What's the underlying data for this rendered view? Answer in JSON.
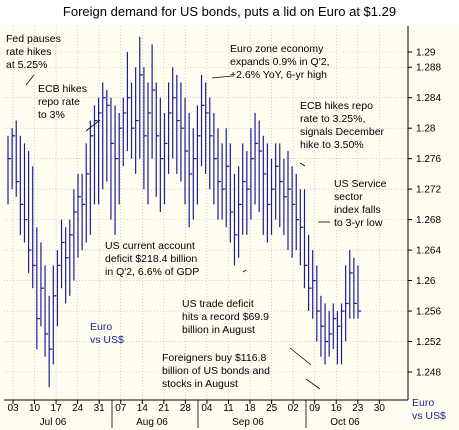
{
  "chart_data": {
    "type": "ohlc",
    "title": "Foreign demand for US bonds, puts a lid on Euro at $1.29",
    "series_name": "Euro vs US$",
    "right_label_lines": [
      "Euro",
      "vs US$"
    ],
    "inline_label_lines": [
      "Euro",
      "vs US$"
    ],
    "ylim": [
      1.244,
      1.294
    ],
    "y_ticks": [
      1.248,
      1.252,
      1.256,
      1.26,
      1.264,
      1.268,
      1.272,
      1.276,
      1.28,
      1.284,
      1.288,
      1.29
    ],
    "y_tick_labels": [
      "1.248",
      "1.252",
      "1.256",
      "1.26",
      "1.264",
      "1.268",
      "1.272",
      "1.276",
      "1.28",
      "1.284",
      "1.288",
      "1.29"
    ],
    "x_tick_labels": [
      "03",
      "10",
      "17",
      "24",
      "31",
      "07",
      "14",
      "21",
      "28",
      "04",
      "11",
      "18",
      "25",
      "02",
      "09",
      "16",
      "23",
      "30"
    ],
    "month_labels": [
      "Jul 06",
      "Aug 06",
      "Sep 06",
      "Oct 06"
    ],
    "bars": [
      {
        "high": 1.279,
        "low": 1.27,
        "close": 1.276
      },
      {
        "high": 1.28,
        "low": 1.272,
        "close": 1.279
      },
      {
        "high": 1.281,
        "low": 1.271,
        "close": 1.273
      },
      {
        "high": 1.279,
        "low": 1.266,
        "close": 1.27
      },
      {
        "high": 1.278,
        "low": 1.265,
        "close": 1.268
      },
      {
        "high": 1.277,
        "low": 1.261,
        "close": 1.264
      },
      {
        "high": 1.275,
        "low": 1.259,
        "close": 1.262
      },
      {
        "high": 1.267,
        "low": 1.251,
        "close": 1.255
      },
      {
        "high": 1.265,
        "low": 1.254,
        "close": 1.259
      },
      {
        "high": 1.262,
        "low": 1.25,
        "close": 1.253
      },
      {
        "high": 1.258,
        "low": 1.246,
        "close": 1.251
      },
      {
        "high": 1.262,
        "low": 1.249,
        "close": 1.258
      },
      {
        "high": 1.264,
        "low": 1.254,
        "close": 1.262
      },
      {
        "high": 1.268,
        "low": 1.259,
        "close": 1.265
      },
      {
        "high": 1.267,
        "low": 1.257,
        "close": 1.263
      },
      {
        "high": 1.268,
        "low": 1.258,
        "close": 1.266
      },
      {
        "high": 1.272,
        "low": 1.26,
        "close": 1.269
      },
      {
        "high": 1.274,
        "low": 1.263,
        "close": 1.271
      },
      {
        "high": 1.274,
        "low": 1.264,
        "close": 1.27
      },
      {
        "high": 1.278,
        "low": 1.265,
        "close": 1.274
      },
      {
        "high": 1.281,
        "low": 1.266,
        "close": 1.279
      },
      {
        "high": 1.283,
        "low": 1.27,
        "close": 1.281
      },
      {
        "high": 1.284,
        "low": 1.27,
        "close": 1.282
      },
      {
        "high": 1.286,
        "low": 1.272,
        "close": 1.284
      },
      {
        "high": 1.285,
        "low": 1.273,
        "close": 1.283
      },
      {
        "high": 1.284,
        "low": 1.268,
        "close": 1.278
      },
      {
        "high": 1.283,
        "low": 1.266,
        "close": 1.276
      },
      {
        "high": 1.282,
        "low": 1.27,
        "close": 1.28
      },
      {
        "high": 1.284,
        "low": 1.275,
        "close": 1.282
      },
      {
        "high": 1.29,
        "low": 1.277,
        "close": 1.284
      },
      {
        "high": 1.286,
        "low": 1.276,
        "close": 1.28
      },
      {
        "high": 1.288,
        "low": 1.274,
        "close": 1.281
      },
      {
        "high": 1.292,
        "low": 1.276,
        "close": 1.287
      },
      {
        "high": 1.288,
        "low": 1.272,
        "close": 1.279
      },
      {
        "high": 1.286,
        "low": 1.27,
        "close": 1.282
      },
      {
        "high": 1.291,
        "low": 1.276,
        "close": 1.285
      },
      {
        "high": 1.286,
        "low": 1.271,
        "close": 1.279
      },
      {
        "high": 1.284,
        "low": 1.269,
        "close": 1.276
      },
      {
        "high": 1.282,
        "low": 1.27,
        "close": 1.278
      },
      {
        "high": 1.286,
        "low": 1.274,
        "close": 1.282
      },
      {
        "high": 1.288,
        "low": 1.276,
        "close": 1.284
      },
      {
        "high": 1.287,
        "low": 1.274,
        "close": 1.281
      },
      {
        "high": 1.286,
        "low": 1.273,
        "close": 1.28
      },
      {
        "high": 1.284,
        "low": 1.27,
        "close": 1.277
      },
      {
        "high": 1.282,
        "low": 1.267,
        "close": 1.274
      },
      {
        "high": 1.28,
        "low": 1.268,
        "close": 1.276
      },
      {
        "high": 1.283,
        "low": 1.27,
        "close": 1.279
      },
      {
        "high": 1.287,
        "low": 1.275,
        "close": 1.283
      },
      {
        "high": 1.286,
        "low": 1.274,
        "close": 1.282
      },
      {
        "high": 1.284,
        "low": 1.272,
        "close": 1.279
      },
      {
        "high": 1.282,
        "low": 1.27,
        "close": 1.276
      },
      {
        "high": 1.28,
        "low": 1.268,
        "close": 1.273
      },
      {
        "high": 1.278,
        "low": 1.268,
        "close": 1.272
      },
      {
        "high": 1.28,
        "low": 1.267,
        "close": 1.275
      },
      {
        "high": 1.278,
        "low": 1.265,
        "close": 1.269
      },
      {
        "high": 1.274,
        "low": 1.262,
        "close": 1.266
      },
      {
        "high": 1.275,
        "low": 1.263,
        "close": 1.27
      },
      {
        "high": 1.278,
        "low": 1.266,
        "close": 1.273
      },
      {
        "high": 1.277,
        "low": 1.266,
        "close": 1.272
      },
      {
        "high": 1.28,
        "low": 1.268,
        "close": 1.276
      },
      {
        "high": 1.282,
        "low": 1.27,
        "close": 1.278
      },
      {
        "high": 1.281,
        "low": 1.269,
        "close": 1.277
      },
      {
        "high": 1.279,
        "low": 1.266,
        "close": 1.274
      },
      {
        "high": 1.278,
        "low": 1.265,
        "close": 1.27
      },
      {
        "high": 1.276,
        "low": 1.266,
        "close": 1.272
      },
      {
        "high": 1.278,
        "low": 1.268,
        "close": 1.275
      },
      {
        "high": 1.278,
        "low": 1.267,
        "close": 1.273
      },
      {
        "high": 1.276,
        "low": 1.266,
        "close": 1.271
      },
      {
        "high": 1.277,
        "low": 1.264,
        "close": 1.272
      },
      {
        "high": 1.275,
        "low": 1.263,
        "close": 1.27
      },
      {
        "high": 1.274,
        "low": 1.264,
        "close": 1.268
      },
      {
        "high": 1.272,
        "low": 1.262,
        "close": 1.267
      },
      {
        "high": 1.272,
        "low": 1.259,
        "close": 1.262
      },
      {
        "high": 1.266,
        "low": 1.256,
        "close": 1.259
      },
      {
        "high": 1.264,
        "low": 1.255,
        "close": 1.26
      },
      {
        "high": 1.262,
        "low": 1.252,
        "close": 1.256
      },
      {
        "high": 1.258,
        "low": 1.25,
        "close": 1.254
      },
      {
        "high": 1.257,
        "low": 1.249,
        "close": 1.252
      },
      {
        "high": 1.256,
        "low": 1.25,
        "close": 1.253
      },
      {
        "high": 1.257,
        "low": 1.251,
        "close": 1.255
      },
      {
        "high": 1.256,
        "low": 1.249,
        "close": 1.254
      },
      {
        "high": 1.257,
        "low": 1.249,
        "close": 1.256
      },
      {
        "high": 1.262,
        "low": 1.252,
        "close": 1.257
      },
      {
        "high": 1.264,
        "low": 1.255,
        "close": 1.261
      },
      {
        "high": 1.263,
        "low": 1.255,
        "close": 1.257
      },
      {
        "high": 1.262,
        "low": 1.255,
        "close": 1.256
      }
    ],
    "annotations": [
      {
        "lines": [
          "Fed pauses",
          "rate hikes",
          "at 5.25%"
        ]
      },
      {
        "lines": [
          "ECB hikes",
          "repo rate",
          "to 3%"
        ]
      },
      {
        "lines": [
          "Euro zone economy",
          "expands 0.9% in Q'2,",
          "+2.6% YoY, 6-yr high"
        ]
      },
      {
        "lines": [
          "ECB hikes repo",
          "rate to 3.25%,",
          "signals December",
          "hike to 3.50%"
        ]
      },
      {
        "lines": [
          "US Service",
          "sector",
          "index falls",
          "to 3-yr low"
        ]
      },
      {
        "lines": [
          "US current account",
          "deficit $218.4 billion",
          "in Q'2, 6.6% of GDP"
        ]
      },
      {
        "lines": [
          "US trade deficit",
          "hits a record $69.9",
          "billion in August"
        ]
      },
      {
        "lines": [
          "Foreigners buy $116.8",
          "billion of US bonds and",
          "stocks in August"
        ]
      }
    ],
    "colors": {
      "series": "#1c1c9a",
      "background": "#fffdf0",
      "grid": "#b5b5b5",
      "label_blue": "#1c1c9a"
    }
  }
}
